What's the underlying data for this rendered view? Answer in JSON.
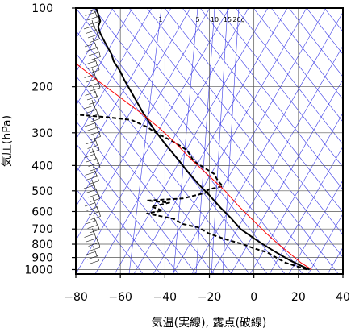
{
  "chart_data": {
    "type": "line",
    "subtype": "skew-t log-p diagram",
    "title": "",
    "xlabel": "気温(実線), 露点(破線)",
    "ylabel": "気圧(hPa)",
    "xlim": [
      -80,
      40
    ],
    "ylim": [
      1040,
      100
    ],
    "y_scale": "log",
    "x_ticks": [
      "−80",
      "−60",
      "−40",
      "−20",
      "0",
      "20",
      "40"
    ],
    "x_tick_values": [
      -80,
      -60,
      -40,
      -20,
      0,
      20,
      40
    ],
    "y_ticks": [
      "100",
      "200",
      "300",
      "400",
      "500",
      "600",
      "700",
      "800",
      "900",
      "1000"
    ],
    "y_tick_values": [
      100,
      200,
      300,
      400,
      500,
      600,
      700,
      800,
      900,
      1000
    ],
    "mixing_ratio_labels": [
      {
        "text": "1",
        "value": 1
      },
      {
        "text": "5",
        "value": 5
      },
      {
        "text": "10",
        "value": 10
      },
      {
        "text": "15",
        "value": 15
      },
      {
        "text": "20g",
        "value": 20
      }
    ],
    "grid": true,
    "colors": {
      "temperature": "#000000",
      "dewpoint": "#000000",
      "parcel": "#ff0000",
      "background_lines": "#3a3ae6"
    },
    "series": [
      {
        "key": "temperature",
        "style": "solid",
        "points": [
          {
            "x": -71,
            "y": 100
          },
          {
            "x": -70,
            "y": 105
          },
          {
            "x": -69,
            "y": 112
          },
          {
            "x": -70,
            "y": 118
          },
          {
            "x": -69,
            "y": 125
          },
          {
            "x": -67,
            "y": 135
          },
          {
            "x": -64,
            "y": 150
          },
          {
            "x": -63,
            "y": 160
          },
          {
            "x": -60,
            "y": 175
          },
          {
            "x": -58,
            "y": 190
          },
          {
            "x": -55,
            "y": 210
          },
          {
            "x": -50,
            "y": 250
          },
          {
            "x": -45,
            "y": 290
          },
          {
            "x": -40,
            "y": 330
          },
          {
            "x": -34,
            "y": 380
          },
          {
            "x": -30,
            "y": 420
          },
          {
            "x": -25,
            "y": 470
          },
          {
            "x": -20,
            "y": 520
          },
          {
            "x": -15,
            "y": 580
          },
          {
            "x": -10,
            "y": 640
          },
          {
            "x": -6,
            "y": 700
          },
          {
            "x": 0,
            "y": 760
          },
          {
            "x": 5,
            "y": 810
          },
          {
            "x": 10,
            "y": 860
          },
          {
            "x": 14,
            "y": 900
          },
          {
            "x": 17,
            "y": 930
          },
          {
            "x": 21,
            "y": 965
          },
          {
            "x": 25,
            "y": 1000
          }
        ]
      },
      {
        "key": "dewpoint",
        "style": "dashed",
        "points": [
          {
            "x": -81,
            "y": 255
          },
          {
            "x": -74,
            "y": 258
          },
          {
            "x": -65,
            "y": 262
          },
          {
            "x": -55,
            "y": 268
          },
          {
            "x": -48,
            "y": 285
          },
          {
            "x": -44,
            "y": 300
          },
          {
            "x": -36,
            "y": 325
          },
          {
            "x": -30,
            "y": 350
          },
          {
            "x": -27,
            "y": 385
          },
          {
            "x": -22,
            "y": 410
          },
          {
            "x": -18,
            "y": 430
          },
          {
            "x": -16,
            "y": 460
          },
          {
            "x": -14,
            "y": 480
          },
          {
            "x": -21,
            "y": 495
          },
          {
            "x": -20,
            "y": 505
          },
          {
            "x": -32,
            "y": 535
          },
          {
            "x": -48,
            "y": 545
          },
          {
            "x": -38,
            "y": 555
          },
          {
            "x": -46,
            "y": 575
          },
          {
            "x": -41,
            "y": 595
          },
          {
            "x": -48,
            "y": 610
          },
          {
            "x": -36,
            "y": 640
          },
          {
            "x": -32,
            "y": 670
          },
          {
            "x": -25,
            "y": 690
          },
          {
            "x": -20,
            "y": 730
          },
          {
            "x": -12,
            "y": 770
          },
          {
            "x": -5,
            "y": 800
          },
          {
            "x": 0,
            "y": 830
          },
          {
            "x": 6,
            "y": 860
          },
          {
            "x": 10,
            "y": 900
          },
          {
            "x": 14,
            "y": 940
          },
          {
            "x": 19,
            "y": 970
          },
          {
            "x": 24,
            "y": 1000
          }
        ]
      },
      {
        "key": "parcel",
        "style": "solid",
        "points": [
          {
            "x": -80,
            "y": 163
          },
          {
            "x": -70,
            "y": 190
          },
          {
            "x": -60,
            "y": 220
          },
          {
            "x": -50,
            "y": 255
          },
          {
            "x": -42,
            "y": 290
          },
          {
            "x": -35,
            "y": 330
          },
          {
            "x": -28,
            "y": 380
          },
          {
            "x": -20,
            "y": 440
          },
          {
            "x": -13,
            "y": 500
          },
          {
            "x": -7,
            "y": 570
          },
          {
            "x": -1,
            "y": 640
          },
          {
            "x": 5,
            "y": 720
          },
          {
            "x": 11,
            "y": 800
          },
          {
            "x": 17,
            "y": 880
          },
          {
            "x": 21,
            "y": 940
          },
          {
            "x": 26,
            "y": 1000
          }
        ]
      }
    ]
  }
}
